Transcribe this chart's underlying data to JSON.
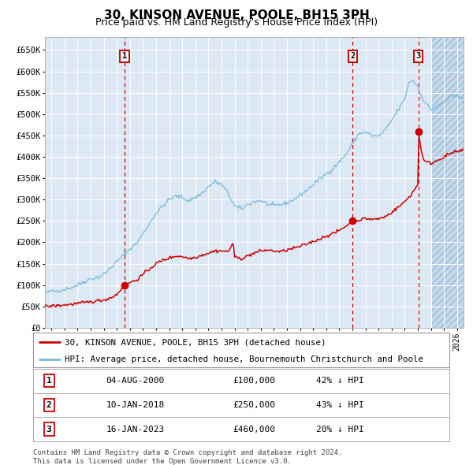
{
  "title": "30, KINSON AVENUE, POOLE, BH15 3PH",
  "subtitle": "Price paid vs. HM Land Registry's House Price Index (HPI)",
  "title_fontsize": 11,
  "subtitle_fontsize": 9,
  "bg_color": "#dce9f5",
  "hatch_color": "#c5d8ec",
  "grid_color": "#ffffff",
  "line_hpi_color": "#7ab8d9",
  "line_price_color": "#cc0000",
  "marker_color": "#cc0000",
  "sale_dates_year": [
    2000.58,
    2018.03,
    2023.04
  ],
  "sale_prices": [
    100000,
    250000,
    460000
  ],
  "sale_labels": [
    "1",
    "2",
    "3"
  ],
  "sale_date_strs": [
    "04-AUG-2000",
    "10-JAN-2018",
    "16-JAN-2023"
  ],
  "sale_pct": [
    "42%",
    "43%",
    "20%"
  ],
  "ylim": [
    0,
    680000
  ],
  "yticks": [
    0,
    50000,
    100000,
    150000,
    200000,
    250000,
    300000,
    350000,
    400000,
    450000,
    500000,
    550000,
    600000,
    650000
  ],
  "ytick_labels": [
    "£0",
    "£50K",
    "£100K",
    "£150K",
    "£200K",
    "£250K",
    "£300K",
    "£350K",
    "£400K",
    "£450K",
    "£500K",
    "£550K",
    "£600K",
    "£650K"
  ],
  "xlim_start": 1994.5,
  "xlim_end": 2026.5,
  "hatch_start": 2024.0,
  "legend_line1": "30, KINSON AVENUE, POOLE, BH15 3PH (detached house)",
  "legend_line2": "HPI: Average price, detached house, Bournemouth Christchurch and Poole",
  "footnote1": "Contains HM Land Registry data © Crown copyright and database right 2024.",
  "footnote2": "This data is licensed under the Open Government Licence v3.0."
}
